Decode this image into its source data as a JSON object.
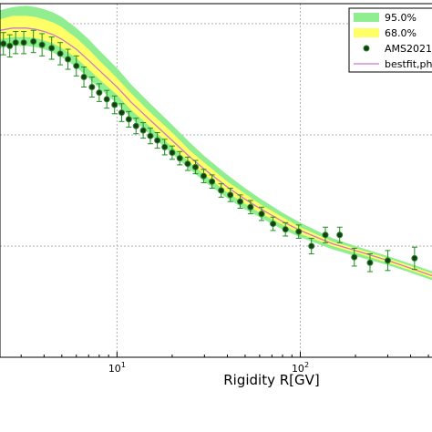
{
  "chart_data": {
    "type": "scatter",
    "xlabel": "Rigidity R[GV]",
    "ylabel": "",
    "xscale": "log",
    "xlim": [
      2.3,
      600
    ],
    "ylim": [
      0,
      3.18
    ],
    "grid": true,
    "x_ticks": [
      {
        "value": 10,
        "base": "10",
        "exp": "1"
      },
      {
        "value": 100,
        "base": "10",
        "exp": "2"
      }
    ],
    "y_gridlines": [
      1,
      2,
      3
    ],
    "legend": {
      "placement": "top-right",
      "entries": [
        {
          "label": "95.0%",
          "kind": "band",
          "color": "#90ee90"
        },
        {
          "label": "68.0%",
          "kind": "band",
          "color": "#ffff66"
        },
        {
          "label": "AMS2021",
          "kind": "marker",
          "color": "#228b22"
        },
        {
          "label": "bestfit,ph",
          "kind": "line",
          "color": "#cc77cc"
        }
      ]
    },
    "series": [
      {
        "name": "AMS2021",
        "kind": "points_with_errors",
        "color": "#228b22",
        "marker_fill": "#1a3a1a",
        "x": [
          2.4,
          2.6,
          2.8,
          3.1,
          3.5,
          3.9,
          4.4,
          4.9,
          5.4,
          6.0,
          6.6,
          7.3,
          8.0,
          8.8,
          9.7,
          10.6,
          11.6,
          12.7,
          13.9,
          15.2,
          16.6,
          18.2,
          20.0,
          22.0,
          24.3,
          26.8,
          29.7,
          33.0,
          37.0,
          41.5,
          47.0,
          53.5,
          61.5,
          71.0,
          83.0,
          98.0,
          115.0,
          137.0,
          164.0,
          197.0,
          240.0,
          300.0,
          420.0,
          590.0
        ],
        "y": [
          2.82,
          2.8,
          2.83,
          2.83,
          2.84,
          2.81,
          2.78,
          2.73,
          2.68,
          2.62,
          2.52,
          2.43,
          2.38,
          2.32,
          2.27,
          2.2,
          2.14,
          2.08,
          2.04,
          1.99,
          1.95,
          1.89,
          1.84,
          1.79,
          1.74,
          1.71,
          1.63,
          1.58,
          1.5,
          1.46,
          1.4,
          1.35,
          1.29,
          1.2,
          1.15,
          1.13,
          1.0,
          1.1,
          1.1,
          0.9,
          0.85,
          0.87,
          0.89,
          0.75
        ],
        "err": [
          0.1,
          0.1,
          0.1,
          0.1,
          0.1,
          0.1,
          0.1,
          0.1,
          0.09,
          0.09,
          0.09,
          0.09,
          0.08,
          0.08,
          0.08,
          0.08,
          0.07,
          0.07,
          0.07,
          0.07,
          0.07,
          0.07,
          0.06,
          0.06,
          0.06,
          0.06,
          0.06,
          0.06,
          0.06,
          0.06,
          0.06,
          0.06,
          0.06,
          0.06,
          0.06,
          0.06,
          0.07,
          0.07,
          0.07,
          0.08,
          0.08,
          0.09,
          0.1,
          0.12
        ]
      },
      {
        "name": "bestfit,ph",
        "kind": "line",
        "color": "#cc77cc",
        "x": [
          2.3,
          2.7,
          3.2,
          3.6,
          4.0,
          4.5,
          5.0,
          6.0,
          7.0,
          8.0,
          10.0,
          12.0,
          15.0,
          20.0,
          25.0,
          30.0,
          40.0,
          50.0,
          60.0,
          80.0,
          100.0,
          150.0,
          200.0,
          300.0,
          400.0,
          600.0
        ],
        "y": [
          2.94,
          2.96,
          2.96,
          2.95,
          2.93,
          2.9,
          2.86,
          2.77,
          2.67,
          2.58,
          2.43,
          2.29,
          2.14,
          1.95,
          1.8,
          1.69,
          1.53,
          1.42,
          1.34,
          1.22,
          1.14,
          1.02,
          0.96,
          0.87,
          0.8,
          0.7
        ]
      }
    ],
    "bands": [
      {
        "name": "95.0%",
        "color": "#90ee90",
        "x": [
          2.3,
          2.7,
          3.2,
          3.6,
          4.0,
          4.5,
          5.0,
          6.0,
          7.0,
          8.0,
          10.0,
          12.0,
          15.0,
          20.0,
          25.0,
          30.0,
          40.0,
          50.0,
          60.0,
          80.0,
          100.0,
          150.0,
          200.0,
          300.0,
          400.0,
          600.0
        ],
        "upper": [
          3.12,
          3.15,
          3.16,
          3.15,
          3.13,
          3.1,
          3.06,
          2.96,
          2.86,
          2.76,
          2.6,
          2.45,
          2.29,
          2.09,
          1.93,
          1.81,
          1.64,
          1.52,
          1.43,
          1.3,
          1.21,
          1.07,
          1.0,
          0.91,
          0.84,
          0.74
        ],
        "lower": [
          2.78,
          2.8,
          2.8,
          2.79,
          2.77,
          2.74,
          2.7,
          2.61,
          2.51,
          2.42,
          2.28,
          2.15,
          2.01,
          1.83,
          1.69,
          1.58,
          1.43,
          1.33,
          1.26,
          1.15,
          1.08,
          0.97,
          0.91,
          0.83,
          0.76,
          0.66
        ]
      },
      {
        "name": "68.0%",
        "color": "#ffff66",
        "x": [
          2.3,
          2.7,
          3.2,
          3.6,
          4.0,
          4.5,
          5.0,
          6.0,
          7.0,
          8.0,
          10.0,
          12.0,
          15.0,
          20.0,
          25.0,
          30.0,
          40.0,
          50.0,
          60.0,
          80.0,
          100.0,
          150.0,
          200.0,
          300.0,
          400.0,
          600.0
        ],
        "upper": [
          3.04,
          3.07,
          3.07,
          3.06,
          3.04,
          3.01,
          2.97,
          2.87,
          2.77,
          2.67,
          2.51,
          2.37,
          2.21,
          2.02,
          1.86,
          1.75,
          1.58,
          1.47,
          1.38,
          1.26,
          1.17,
          1.04,
          0.98,
          0.89,
          0.82,
          0.72
        ],
        "lower": [
          2.86,
          2.88,
          2.88,
          2.87,
          2.85,
          2.82,
          2.78,
          2.69,
          2.59,
          2.5,
          2.36,
          2.22,
          2.08,
          1.89,
          1.75,
          1.64,
          1.48,
          1.38,
          1.3,
          1.19,
          1.11,
          1.0,
          0.94,
          0.85,
          0.78,
          0.68
        ]
      }
    ]
  }
}
